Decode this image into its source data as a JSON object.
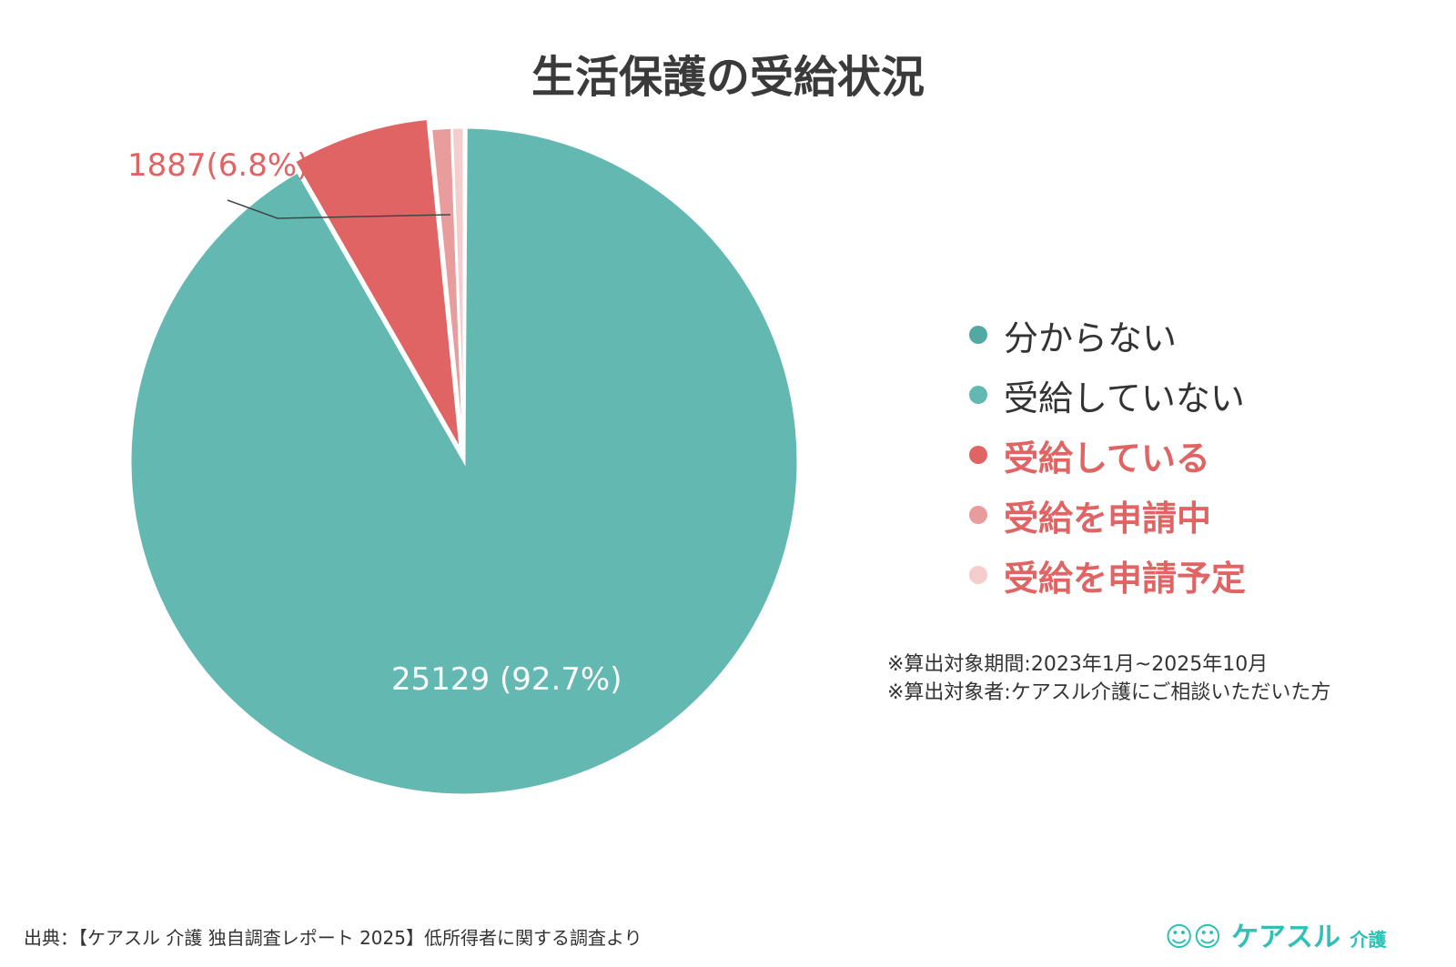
{
  "chart_data": {
    "type": "pie",
    "title": "生活保護の受給状況",
    "slices": [
      {
        "label": "分からない",
        "percent": 0.1,
        "color": "#52a8a2",
        "legend_text_color": "#333333",
        "bold": false
      },
      {
        "label": "受給していない",
        "value": 25129,
        "percent": 92.7,
        "color": "#63b8b2",
        "data_label": "25129 (92.7%)",
        "legend_text_color": "#333333",
        "bold": false
      },
      {
        "label": "受給している",
        "value": 1887,
        "percent": 6.8,
        "color": "#e06464",
        "data_label": "1887(6.8%)",
        "exploded": true,
        "legend_text_color": "#e06464",
        "bold": true
      },
      {
        "label": "受給を申請中",
        "percent": 1.0,
        "color": "#e89c9c",
        "legend_text_color": "#e06464",
        "bold": true
      },
      {
        "label": "受給を申請予定",
        "percent": 0.6,
        "color": "#f5cdcd",
        "legend_text_color": "#e06464",
        "bold": true
      }
    ],
    "legend_position": "right"
  },
  "notes": [
    "※算出対象期間:2023年1月~2025年10月",
    "※算出対象者:ケアスル介護にご相談いただいた方"
  ],
  "source": "出典：【ケアスル 介護 独自調査レポート 2025】低所得者に関する調査より",
  "logo": {
    "text": "ケアスル",
    "sub": "介護"
  }
}
